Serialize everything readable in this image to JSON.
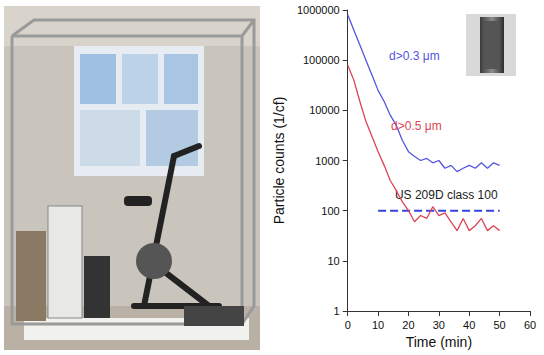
{
  "chart_data": {
    "type": "line",
    "xlabel": "Time (min)",
    "ylabel": "Particle counts (1/cf)",
    "log": "y",
    "grid": false,
    "xlim": [
      0,
      60
    ],
    "xticks": [
      0,
      10,
      20,
      30,
      40,
      50,
      60
    ],
    "ylim": [
      1,
      1000000
    ],
    "yticks": [
      1,
      10,
      100,
      1000,
      10000,
      100000,
      1000000
    ],
    "x": [
      0,
      2,
      4,
      6,
      8,
      10,
      12,
      14,
      16,
      18,
      20,
      22,
      24,
      26,
      28,
      30,
      32,
      34,
      36,
      38,
      40,
      42,
      44,
      46,
      48,
      50
    ],
    "series": [
      {
        "name": "d>0.3 μm",
        "color": "#5555dd",
        "values": [
          800000,
          400000,
          200000,
          100000,
          50000,
          25000,
          15000,
          8000,
          5000,
          2500,
          1500,
          1200,
          1000,
          1100,
          900,
          1000,
          700,
          800,
          600,
          700,
          800,
          700,
          900,
          700,
          900,
          800
        ]
      },
      {
        "name": "d>0.5 μm",
        "color": "#dd4455",
        "values": [
          80000,
          40000,
          15000,
          6000,
          3000,
          1500,
          800,
          400,
          250,
          150,
          100,
          60,
          80,
          70,
          120,
          80,
          90,
          60,
          40,
          70,
          40,
          50,
          70,
          40,
          50,
          40
        ]
      }
    ],
    "reference": {
      "label": "US 209D class 100",
      "y": 100,
      "x": [
        10,
        50
      ],
      "color": "#3344dd",
      "line_style": "dashed"
    }
  }
}
